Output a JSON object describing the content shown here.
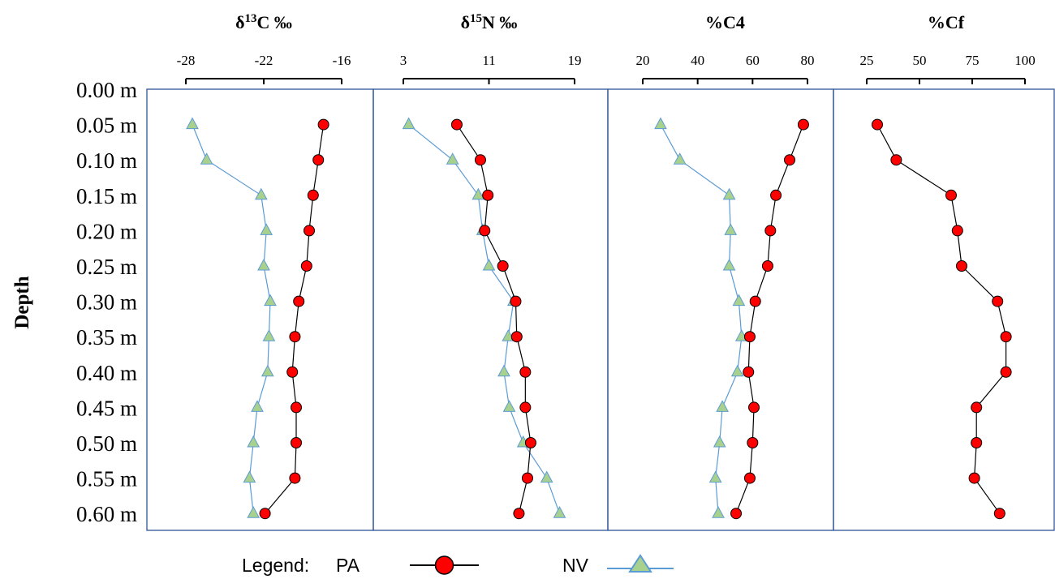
{
  "chart_data": {
    "type": "line",
    "ylabel": "Depth",
    "depth_labels": [
      "0.00 m",
      "0.05 m",
      "0.10 m",
      "0.15 m",
      "0.20 m",
      "0.25 m",
      "0.30 m",
      "0.35 m",
      "0.40 m",
      "0.45 m",
      "0.50 m",
      "0.55 m",
      "0.60 m"
    ],
    "depths": [
      0.05,
      0.1,
      0.15,
      0.2,
      0.25,
      0.3,
      0.35,
      0.4,
      0.45,
      0.5,
      0.55,
      0.6
    ],
    "colors": {
      "pa_marker": "#ff0000",
      "pa_line": "#000000",
      "nv_marker": "#a9d18e",
      "nv_line": "#5b9bd5",
      "frame": "#2f5597"
    },
    "panels": [
      {
        "title_main": "δ",
        "title_sup": "13",
        "title_rest": "C ‰",
        "xlim": [
          -28,
          -16
        ],
        "xticks": [
          -28,
          -22,
          -16
        ],
        "xtick_labels": [
          "-28",
          "-22",
          "-16"
        ],
        "series": [
          {
            "name": "PA",
            "values": [
              -17.4,
              -17.8,
              -18.2,
              -18.5,
              -18.7,
              -19.3,
              -19.6,
              -19.8,
              -19.5,
              -19.5,
              -19.6,
              -21.9
            ]
          },
          {
            "name": "NV",
            "values": [
              -27.5,
              -26.4,
              -22.2,
              -21.8,
              -22.0,
              -21.5,
              -21.6,
              -21.7,
              -22.5,
              -22.8,
              -23.1,
              -22.8
            ]
          }
        ]
      },
      {
        "title_main": "δ",
        "title_sup": "15",
        "title_rest": "N ‰",
        "xlim": [
          3,
          19
        ],
        "xticks": [
          3,
          11,
          19
        ],
        "xtick_labels": [
          "3",
          "11",
          "19"
        ],
        "series": [
          {
            "name": "PA",
            "values": [
              8.0,
              10.2,
              10.9,
              10.6,
              12.3,
              13.5,
              13.6,
              14.4,
              14.4,
              14.9,
              14.6,
              13.8
            ]
          },
          {
            "name": "NV",
            "values": [
              3.5,
              7.6,
              10.0,
              10.4,
              11.0,
              13.3,
              12.8,
              12.4,
              12.9,
              14.2,
              16.4,
              17.6
            ]
          }
        ]
      },
      {
        "title_main": "%C4",
        "title_sup": "",
        "title_rest": "",
        "xlim": [
          20,
          80
        ],
        "xticks": [
          20,
          40,
          60,
          80
        ],
        "xtick_labels": [
          "20",
          "40",
          "60",
          "80"
        ],
        "series": [
          {
            "name": "PA",
            "values": [
              78.5,
              73.5,
              68.5,
              66.5,
              65.5,
              61.0,
              59.0,
              58.5,
              60.5,
              60.0,
              59.0,
              54.0
            ]
          },
          {
            "name": "NV",
            "values": [
              26.5,
              33.5,
              51.5,
              52.0,
              51.5,
              55.0,
              56.0,
              54.5,
              49.0,
              48.0,
              46.5,
              47.5
            ]
          }
        ]
      },
      {
        "title_main": "%Cf",
        "title_sup": "",
        "title_rest": "",
        "xlim": [
          25,
          100
        ],
        "xticks": [
          25,
          50,
          75,
          100
        ],
        "xtick_labels": [
          "25",
          "50",
          "75",
          "100"
        ],
        "series": [
          {
            "name": "PA",
            "values": [
              30,
              39,
              65,
              68,
              70,
              87,
              91,
              91,
              77,
              77,
              76,
              88
            ]
          }
        ]
      }
    ],
    "legend": {
      "label": "Legend:",
      "entries": [
        {
          "name": "PA",
          "marker": "circle"
        },
        {
          "name": "NV",
          "marker": "triangle"
        }
      ]
    }
  }
}
